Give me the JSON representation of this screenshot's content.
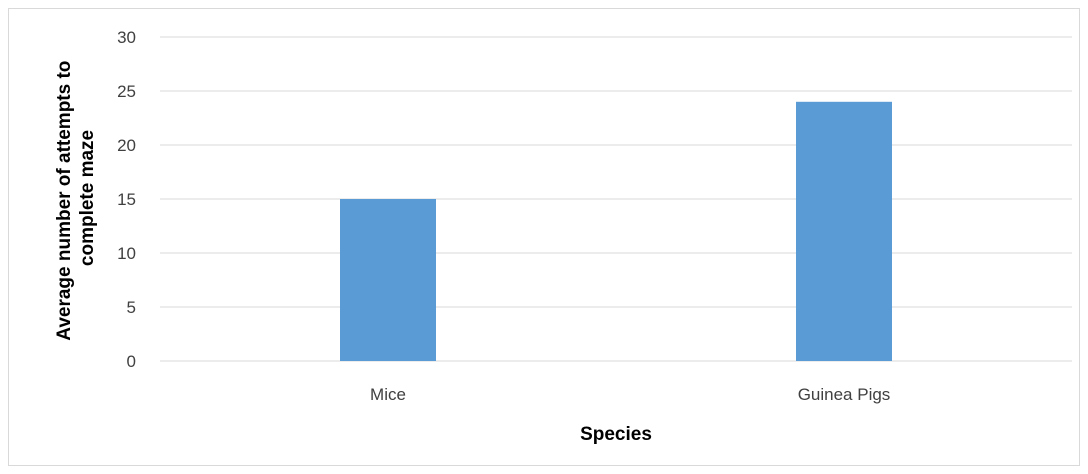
{
  "chart_data": {
    "type": "bar",
    "categories": [
      "Mice",
      "Guinea Pigs"
    ],
    "series": [
      {
        "values": [
          15,
          24
        ],
        "color": "#5b9bd5"
      }
    ],
    "xlabel": "Species",
    "ylabel_lines": [
      "Average number of attempts to",
      "complete maze"
    ],
    "ylim": [
      0,
      30
    ],
    "yticks": [
      0,
      5,
      10,
      15,
      20,
      25,
      30
    ],
    "grid": true,
    "legend": "none",
    "gridline_color": "#d9d9d9"
  }
}
